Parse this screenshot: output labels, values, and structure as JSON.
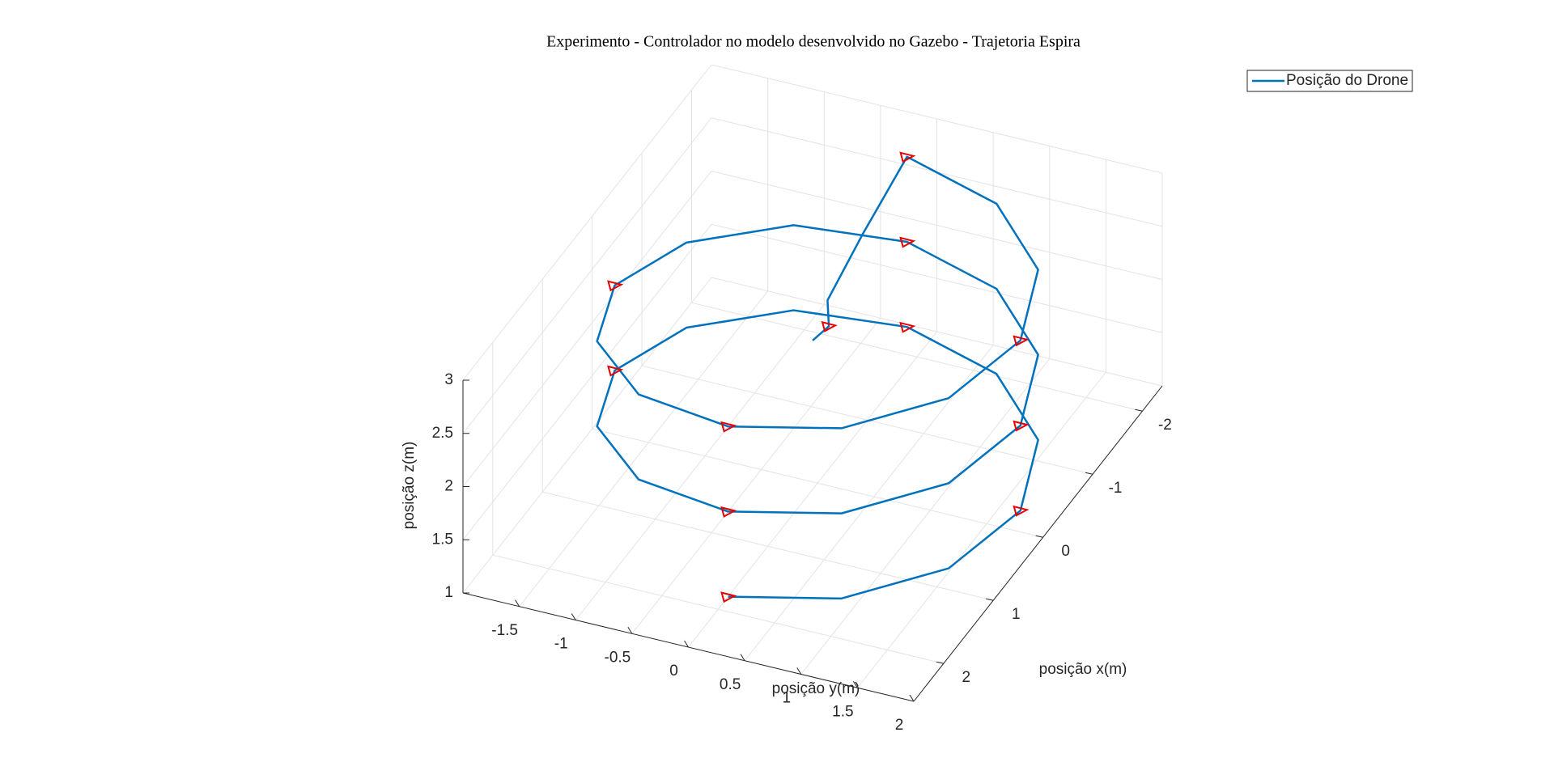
{
  "chart_data": {
    "type": "line3d",
    "title": "Experimento - Controlador no modelo desenvolvido no Gazebo - Trajetoria Espira",
    "xlabel": "posição x(m)",
    "ylabel": "posição y(m)",
    "zlabel": "posição z(m)",
    "xlim": [
      -2.4,
      2.6
    ],
    "ylim": [
      -2,
      2
    ],
    "zlim": [
      1,
      3
    ],
    "xticks": [
      -2,
      -1,
      0,
      1,
      2
    ],
    "yticks": [
      -1.5,
      -1,
      -0.5,
      0,
      0.5,
      1,
      1.5,
      2
    ],
    "zticks": [
      1,
      1.5,
      2,
      2.5,
      3
    ],
    "grid": true,
    "legend": "northeast",
    "series": [
      {
        "name": "Posição do Drone",
        "color": "#0072bd",
        "x": [
          1.8,
          1.56,
          0.9,
          0,
          -0.9,
          -1.56,
          -1.8,
          -1.56,
          -0.9,
          0,
          0.9,
          1.56,
          1.8,
          1.56,
          0.9,
          0,
          -0.9,
          -1.56,
          -1.8,
          -1.56,
          -0.9,
          0,
          0.9,
          1.56,
          1.8,
          1.56,
          0.9,
          0,
          -0.9,
          -1.56,
          -1.8,
          -0.9,
          -0.2,
          0,
          0.1
        ],
        "y": [
          0,
          0.9,
          1.56,
          1.8,
          1.56,
          0.9,
          0,
          -0.9,
          -1.56,
          -1.8,
          -1.56,
          -0.9,
          0,
          0.9,
          1.56,
          1.8,
          1.56,
          0.9,
          0,
          -0.9,
          -1.56,
          -1.8,
          -1.56,
          -0.9,
          0,
          0.9,
          1.56,
          1.8,
          1.56,
          0.9,
          0,
          0,
          0,
          0.1,
          0
        ],
        "z": [
          1,
          1.07,
          1.13,
          1.2,
          1.27,
          1.33,
          1.4,
          1.47,
          1.53,
          1.6,
          1.67,
          1.73,
          1.8,
          1.87,
          1.93,
          2,
          2.07,
          2.13,
          2.2,
          2.27,
          2.33,
          2.4,
          2.47,
          2.53,
          2.6,
          2.67,
          2.73,
          2.8,
          2.87,
          2.93,
          3,
          2.8,
          2.6,
          2.5,
          2.4
        ]
      },
      {
        "color": "#e60000",
        "x": [
          1.8,
          0,
          -1.8,
          0,
          1.8,
          0,
          -1.8,
          0,
          1.8,
          0,
          -1.8,
          0
        ],
        "y": [
          0,
          1.8,
          0,
          -1.8,
          0,
          1.8,
          0,
          -1.8,
          0,
          1.8,
          0,
          0.1
        ],
        "z": [
          1,
          1.2,
          1.4,
          1.6,
          1.8,
          2,
          2.2,
          2.4,
          2.6,
          2.8,
          3,
          2.5
        ]
      }
    ]
  }
}
